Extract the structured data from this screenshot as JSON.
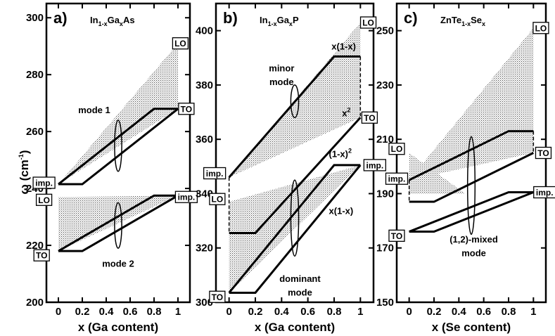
{
  "chart_data": [
    {
      "type": "line",
      "panel": "a)",
      "title": {
        "base": "In",
        "sub1": "1-x",
        "mid": "Ga",
        "sub2": "x",
        "tail": "As"
      },
      "xlabel": "x (Ga content)",
      "ylabel": {
        "base": "ω (cm",
        "sup": "-1",
        "close": ")"
      },
      "xlim": [
        -0.1,
        1.1
      ],
      "ylim": [
        200,
        305
      ],
      "xticks": [
        0,
        0.2,
        0.4,
        0.6,
        0.8,
        1
      ],
      "xtick_labels": [
        "0",
        "0.2",
        "0.4",
        "0.6",
        "0.8",
        "1"
      ],
      "yticks": [
        200,
        220,
        240,
        260,
        280,
        300
      ],
      "ytick_labels": [
        "200",
        "220",
        "240",
        "260",
        "280",
        "300"
      ],
      "series": [
        {
          "name": "mode 1 upper branch",
          "x": [
            0,
            0.8,
            1
          ],
          "y": [
            241.5,
            268,
            268
          ]
        },
        {
          "name": "mode 1 lower branch",
          "x": [
            0,
            0.2,
            1
          ],
          "y": [
            241.5,
            241.5,
            268
          ]
        },
        {
          "name": "mode 2 upper branch",
          "x": [
            0,
            0.8,
            1
          ],
          "y": [
            218,
            237.5,
            237.5
          ]
        },
        {
          "name": "mode 2 lower branch",
          "x": [
            0,
            0.2,
            1
          ],
          "y": [
            218,
            218,
            237.5
          ]
        }
      ],
      "shaded_regions": [
        {
          "name": "mode 1 LO-TO band",
          "x": [
            0,
            1
          ],
          "y_low": [
            241.5,
            268
          ],
          "y_high": [
            241.5,
            291
          ]
        },
        {
          "name": "mode 2 LO-TO band",
          "x": [
            0,
            1
          ],
          "y_low": [
            218,
            237.5
          ],
          "y_high": [
            237,
            237.5
          ]
        }
      ],
      "ellipses": [
        {
          "x": 0.5,
          "y": 255,
          "dx": 0.03,
          "dy": 9
        },
        {
          "x": 0.5,
          "y": 227,
          "dx": 0.03,
          "dy": 8
        }
      ],
      "labels": [
        {
          "text": "mode 1",
          "x": 0.3,
          "y": 266.5,
          "anchor": "middle"
        },
        {
          "text": "mode 2",
          "x": 0.5,
          "y": 212.5,
          "anchor": "middle"
        }
      ],
      "boxes": [
        {
          "text": "LO",
          "x": 1.02,
          "y": 291
        },
        {
          "text": "TO",
          "x": 1.07,
          "y": 268
        },
        {
          "text": "imp.",
          "x": -0.12,
          "y": 242
        },
        {
          "text": "LO",
          "x": -0.12,
          "y": 236
        },
        {
          "text": "imp.",
          "x": 1.07,
          "y": 237
        },
        {
          "text": "TO",
          "x": -0.14,
          "y": 216.5
        }
      ]
    },
    {
      "type": "line",
      "panel": "b)",
      "title": {
        "base": "In",
        "sub1": "1-x",
        "mid": "Ga",
        "sub2": "x",
        "tail": "P"
      },
      "xlabel": "x (Ga content)",
      "xlim": [
        -0.1,
        1.1
      ],
      "ylim": [
        300,
        410
      ],
      "xticks": [
        0,
        0.2,
        0.4,
        0.6,
        0.8,
        1
      ],
      "xtick_labels": [
        "0",
        "0.2",
        "0.4",
        "0.6",
        "0.8",
        "1"
      ],
      "yticks": [
        300,
        320,
        340,
        360,
        380,
        400
      ],
      "ytick_labels": [
        "300",
        "320",
        "340",
        "360",
        "380",
        "400"
      ],
      "series": [
        {
          "name": "minor mode upper branch",
          "x": [
            0,
            0.8,
            1
          ],
          "y": [
            346,
            390.5,
            390.5
          ]
        },
        {
          "name": "minor mode lower branch",
          "x": [
            0,
            0.2,
            1
          ],
          "y": [
            325.5,
            325.5,
            368
          ]
        },
        {
          "name": "dominant mode upper branch",
          "x": [
            0,
            0.8,
            1
          ],
          "y": [
            303.5,
            350.5,
            350.5
          ]
        },
        {
          "name": "dominant mode lower branch",
          "x": [
            0,
            0.2,
            1
          ],
          "y": [
            303.5,
            303.5,
            350.5
          ]
        }
      ],
      "dashed_connectors": [
        {
          "x": [
            0,
            0
          ],
          "y": [
            346,
            325.5
          ]
        },
        {
          "x": [
            1,
            1
          ],
          "y": [
            390.5,
            368
          ]
        }
      ],
      "shaded_regions": [
        {
          "name": "minor mode band",
          "x": [
            0,
            1
          ],
          "y_low": [
            346,
            368
          ],
          "y_high": [
            346,
            403
          ]
        },
        {
          "name": "dominant mode band",
          "x": [
            0,
            1
          ],
          "y_low": [
            303.5,
            350.5
          ],
          "y_high": [
            337,
            350.5
          ]
        }
      ],
      "ellipses": [
        {
          "x": 0.5,
          "y": 374,
          "dx": 0.03,
          "dy": 6
        },
        {
          "x": 0.5,
          "y": 331,
          "dx": 0.03,
          "dy": 14
        }
      ],
      "labels": [
        {
          "text": "minor",
          "x": 0.4,
          "y": 385,
          "anchor": "middle"
        },
        {
          "text": "mode",
          "x": 0.4,
          "y": 380,
          "anchor": "middle"
        },
        {
          "text": "dominant",
          "x": 0.54,
          "y": 307.5,
          "anchor": "middle"
        },
        {
          "text": "mode",
          "x": 0.54,
          "y": 302.5,
          "anchor": "middle"
        },
        {
          "text": "x(1-x)",
          "x": 0.78,
          "y": 393,
          "anchor": "start"
        },
        {
          "text": "x(1-x)",
          "x": 0.76,
          "y": 332.5,
          "anchor": "start"
        }
      ],
      "power_labels": [
        {
          "base": "x",
          "sup": "2",
          "close": "",
          "x": 0.86,
          "y": 368.5
        },
        {
          "base": "(1-x)",
          "sup": "2",
          "close": "",
          "x": 0.76,
          "y": 353.5
        }
      ],
      "boxes": [
        {
          "text": "LO",
          "x": 1.06,
          "y": 403
        },
        {
          "text": "TO",
          "x": 1.07,
          "y": 368
        },
        {
          "text": "imp.",
          "x": -0.11,
          "y": 347.5
        },
        {
          "text": "imp.",
          "x": 1.11,
          "y": 350.5
        },
        {
          "text": "LO",
          "x": -0.09,
          "y": 338
        },
        {
          "text": "TO",
          "x": -0.09,
          "y": 302
        }
      ]
    },
    {
      "type": "line",
      "panel": "c)",
      "title": {
        "base": "ZnTe",
        "sub1": "1-x",
        "mid": "Se",
        "sub2": "x",
        "tail": ""
      },
      "xlabel": "x (Se content)",
      "xlim": [
        -0.1,
        1.1
      ],
      "ylim": [
        150,
        260
      ],
      "xticks": [
        0,
        0.2,
        0.4,
        0.6,
        0.8,
        1
      ],
      "xtick_labels": [
        "0",
        "0.2",
        "0.4",
        "0.6",
        "0.8",
        "1"
      ],
      "yticks": [
        150,
        170,
        190,
        210,
        230,
        250
      ],
      "ytick_labels": [
        "150",
        "170",
        "190",
        "210",
        "230",
        "250"
      ],
      "series": [
        {
          "name": "ZnSe-like upper branch",
          "x": [
            0,
            0.8,
            1
          ],
          "y": [
            195,
            213,
            213
          ]
        },
        {
          "name": "ZnSe-like lower branch",
          "x": [
            0,
            0.2,
            1
          ],
          "y": [
            187,
            187,
            205
          ]
        },
        {
          "name": "ZnTe-like upper branch",
          "x": [
            0,
            0.8,
            1
          ],
          "y": [
            176,
            190.5,
            190.5
          ]
        },
        {
          "name": "ZnTe-like lower branch",
          "x": [
            0,
            0.2,
            1
          ],
          "y": [
            176,
            176,
            190.5
          ]
        }
      ],
      "dashed_connectors": [
        {
          "x": [
            0,
            0
          ],
          "y": [
            195,
            187
          ]
        },
        {
          "x": [
            1,
            1
          ],
          "y": [
            213,
            205
          ]
        }
      ],
      "shaded_regions": [
        {
          "name": "ZnSe-like band",
          "x": [
            0,
            1
          ],
          "y_low": [
            195,
            205
          ],
          "y_high": [
            195,
            251
          ]
        },
        {
          "name": "ZnTe LO band",
          "x": [
            0,
            0.45
          ],
          "y_low": [
            190,
            190
          ],
          "y_high": [
            205,
            190
          ]
        }
      ],
      "ellipses": [
        {
          "x": 0.5,
          "y": 193,
          "dx": 0.03,
          "dy": 18
        }
      ],
      "labels": [
        {
          "text": "(1,2)-mixed",
          "x": 0.52,
          "y": 172,
          "anchor": "middle"
        },
        {
          "text": "mode",
          "x": 0.52,
          "y": 167,
          "anchor": "middle"
        }
      ],
      "boxes": [
        {
          "text": "LO",
          "x": 1.06,
          "y": 251
        },
        {
          "text": "LO",
          "x": -0.1,
          "y": 206.5
        },
        {
          "text": "TO",
          "x": 1.08,
          "y": 205
        },
        {
          "text": "imp.",
          "x": -0.1,
          "y": 195.5
        },
        {
          "text": "imp.",
          "x": 1.09,
          "y": 190.5
        },
        {
          "text": "TO",
          "x": -0.1,
          "y": 174.5
        }
      ]
    }
  ]
}
